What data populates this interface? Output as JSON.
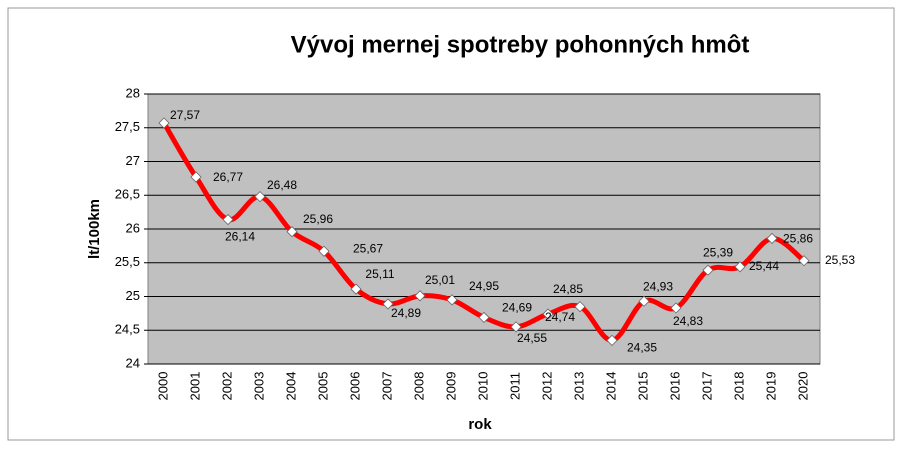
{
  "chart_data": {
    "type": "line",
    "title": "Vývoj mernej spotreby pohonných hmôt",
    "x_label": "rok",
    "y_label": "lt/100km",
    "categories": [
      "2000",
      "2001",
      "2002",
      "2003",
      "2004",
      "2005",
      "2006",
      "2007",
      "2008",
      "2009",
      "2010",
      "2011",
      "2012",
      "2013",
      "2014",
      "2015",
      "2016",
      "2017",
      "2018",
      "2019",
      "2020"
    ],
    "values": [
      27.57,
      26.77,
      26.14,
      26.48,
      25.96,
      25.67,
      25.11,
      24.89,
      25.01,
      24.95,
      24.69,
      24.55,
      24.74,
      24.85,
      24.35,
      24.93,
      24.83,
      25.39,
      25.44,
      25.86,
      25.53
    ],
    "value_labels": [
      "27,57",
      "26,77",
      "26,14",
      "26,48",
      "25,96",
      "25,67",
      "25,11",
      "24,89",
      "25,01",
      "24,95",
      "24,69",
      "24,55",
      "24,74",
      "24,85",
      "24,35",
      "24,93",
      "24,83",
      "25,39",
      "25,44",
      "25,86",
      "25,53"
    ],
    "color": "#ff0000",
    "ylim": [
      24,
      28
    ],
    "yticks": [
      24,
      {
        "value": 24.5,
        "label": "24,5"
      },
      25,
      {
        "value": 25.5,
        "label": "25,5"
      },
      26,
      {
        "value": 26.5,
        "label": "26,5"
      },
      27,
      {
        "value": 27.5,
        "label": "27,5"
      },
      28
    ],
    "grid": true
  }
}
